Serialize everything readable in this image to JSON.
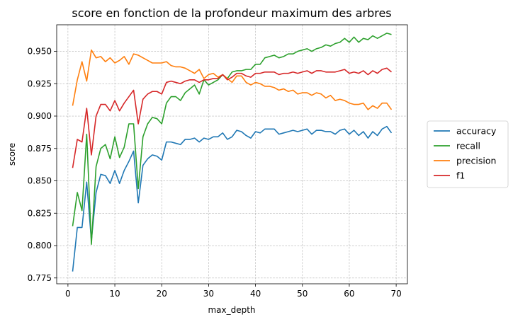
{
  "chart_data": {
    "type": "line",
    "title": "score en fonction de la profondeur maximum des arbres",
    "xlabel": "max_depth",
    "ylabel": "score",
    "xlim": [
      -2.4,
      72.4
    ],
    "ylim": [
      0.7705,
      0.9705
    ],
    "xticks": [
      0,
      10,
      20,
      30,
      40,
      50,
      60,
      70
    ],
    "yticks": [
      0.775,
      0.8,
      0.825,
      0.85,
      0.875,
      0.9,
      0.925,
      0.95
    ],
    "ytick_labels": [
      "0.775",
      "0.800",
      "0.825",
      "0.850",
      "0.875",
      "0.900",
      "0.925",
      "0.950"
    ],
    "grid": true,
    "legend_position": "outside-right",
    "x": [
      1,
      2,
      3,
      4,
      5,
      6,
      7,
      8,
      9,
      10,
      11,
      12,
      13,
      14,
      15,
      16,
      17,
      18,
      19,
      20,
      21,
      22,
      23,
      24,
      25,
      26,
      27,
      28,
      29,
      30,
      31,
      32,
      33,
      34,
      35,
      36,
      37,
      38,
      39,
      40,
      41,
      42,
      43,
      44,
      45,
      46,
      47,
      48,
      49,
      50,
      51,
      52,
      53,
      54,
      55,
      56,
      57,
      58,
      59,
      60,
      61,
      62,
      63,
      64,
      65,
      66,
      67,
      68,
      69
    ],
    "series": [
      {
        "name": "accuracy",
        "color": "#1f77b4",
        "values": [
          0.78,
          0.814,
          0.814,
          0.849,
          0.804,
          0.841,
          0.855,
          0.854,
          0.848,
          0.858,
          0.848,
          0.858,
          0.865,
          0.873,
          0.833,
          0.862,
          0.867,
          0.87,
          0.869,
          0.866,
          0.88,
          0.88,
          0.879,
          0.878,
          0.882,
          0.882,
          0.883,
          0.88,
          0.883,
          0.882,
          0.884,
          0.884,
          0.887,
          0.882,
          0.884,
          0.889,
          0.888,
          0.885,
          0.883,
          0.888,
          0.887,
          0.89,
          0.89,
          0.89,
          0.886,
          0.887,
          0.888,
          0.889,
          0.888,
          0.889,
          0.89,
          0.886,
          0.889,
          0.889,
          0.888,
          0.888,
          0.886,
          0.889,
          0.89,
          0.886,
          0.889,
          0.885,
          0.888,
          0.883,
          0.888,
          0.885,
          0.89,
          0.892,
          0.887
        ]
      },
      {
        "name": "recall",
        "color": "#2ca02c",
        "values": [
          0.815,
          0.841,
          0.827,
          0.886,
          0.801,
          0.861,
          0.875,
          0.878,
          0.867,
          0.884,
          0.868,
          0.876,
          0.894,
          0.894,
          0.844,
          0.884,
          0.894,
          0.899,
          0.898,
          0.894,
          0.91,
          0.915,
          0.915,
          0.912,
          0.918,
          0.921,
          0.924,
          0.917,
          0.928,
          0.924,
          0.926,
          0.928,
          0.932,
          0.929,
          0.934,
          0.935,
          0.935,
          0.936,
          0.936,
          0.94,
          0.94,
          0.945,
          0.946,
          0.947,
          0.945,
          0.946,
          0.948,
          0.948,
          0.95,
          0.951,
          0.952,
          0.95,
          0.952,
          0.953,
          0.955,
          0.954,
          0.956,
          0.957,
          0.96,
          0.957,
          0.961,
          0.957,
          0.96,
          0.959,
          0.962,
          0.96,
          0.962,
          0.964,
          0.963
        ]
      },
      {
        "name": "precision",
        "color": "#ff7f0e",
        "values": [
          0.908,
          0.928,
          0.942,
          0.927,
          0.951,
          0.945,
          0.946,
          0.942,
          0.945,
          0.941,
          0.943,
          0.946,
          0.94,
          0.948,
          0.947,
          0.945,
          0.943,
          0.941,
          0.941,
          0.941,
          0.942,
          0.939,
          0.938,
          0.938,
          0.937,
          0.935,
          0.933,
          0.936,
          0.929,
          0.932,
          0.933,
          0.93,
          0.932,
          0.929,
          0.926,
          0.931,
          0.931,
          0.926,
          0.924,
          0.926,
          0.925,
          0.923,
          0.923,
          0.922,
          0.92,
          0.921,
          0.919,
          0.92,
          0.917,
          0.918,
          0.918,
          0.916,
          0.918,
          0.917,
          0.914,
          0.916,
          0.912,
          0.913,
          0.912,
          0.91,
          0.909,
          0.909,
          0.91,
          0.905,
          0.908,
          0.906,
          0.91,
          0.91,
          0.905
        ]
      },
      {
        "name": "f1",
        "color": "#d62728",
        "values": [
          0.86,
          0.882,
          0.88,
          0.906,
          0.87,
          0.9,
          0.909,
          0.909,
          0.904,
          0.912,
          0.904,
          0.91,
          0.915,
          0.92,
          0.894,
          0.913,
          0.917,
          0.919,
          0.919,
          0.917,
          0.926,
          0.927,
          0.926,
          0.925,
          0.927,
          0.928,
          0.928,
          0.926,
          0.928,
          0.928,
          0.929,
          0.929,
          0.932,
          0.928,
          0.93,
          0.933,
          0.933,
          0.931,
          0.93,
          0.933,
          0.933,
          0.934,
          0.934,
          0.934,
          0.932,
          0.933,
          0.933,
          0.934,
          0.933,
          0.934,
          0.935,
          0.933,
          0.935,
          0.935,
          0.934,
          0.934,
          0.934,
          0.935,
          0.936,
          0.933,
          0.934,
          0.933,
          0.935,
          0.932,
          0.935,
          0.933,
          0.936,
          0.937,
          0.934
        ]
      }
    ]
  }
}
